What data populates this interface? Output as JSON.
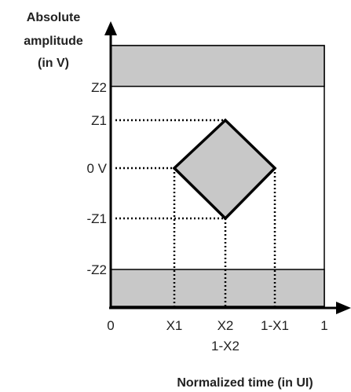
{
  "y_axis": {
    "title_lines": [
      "Absolute",
      "amplitude",
      "(in V)"
    ],
    "tick_labels": {
      "z2": "Z2",
      "z1": "Z1",
      "zero": "0 V",
      "neg_z1": "-Z1",
      "neg_z2": "-Z2"
    }
  },
  "x_axis": {
    "title": "Normalized time (in UI)",
    "tick_labels": {
      "zero": "0",
      "x1": "X1",
      "x2": "X2",
      "one_minus_x2": "1-X2",
      "one_minus_x1": "1-X1",
      "one": "1"
    }
  },
  "colors": {
    "band_fill": "#c8c8c8",
    "eye_fill": "#c8c8c8",
    "stroke": "#000000"
  }
}
